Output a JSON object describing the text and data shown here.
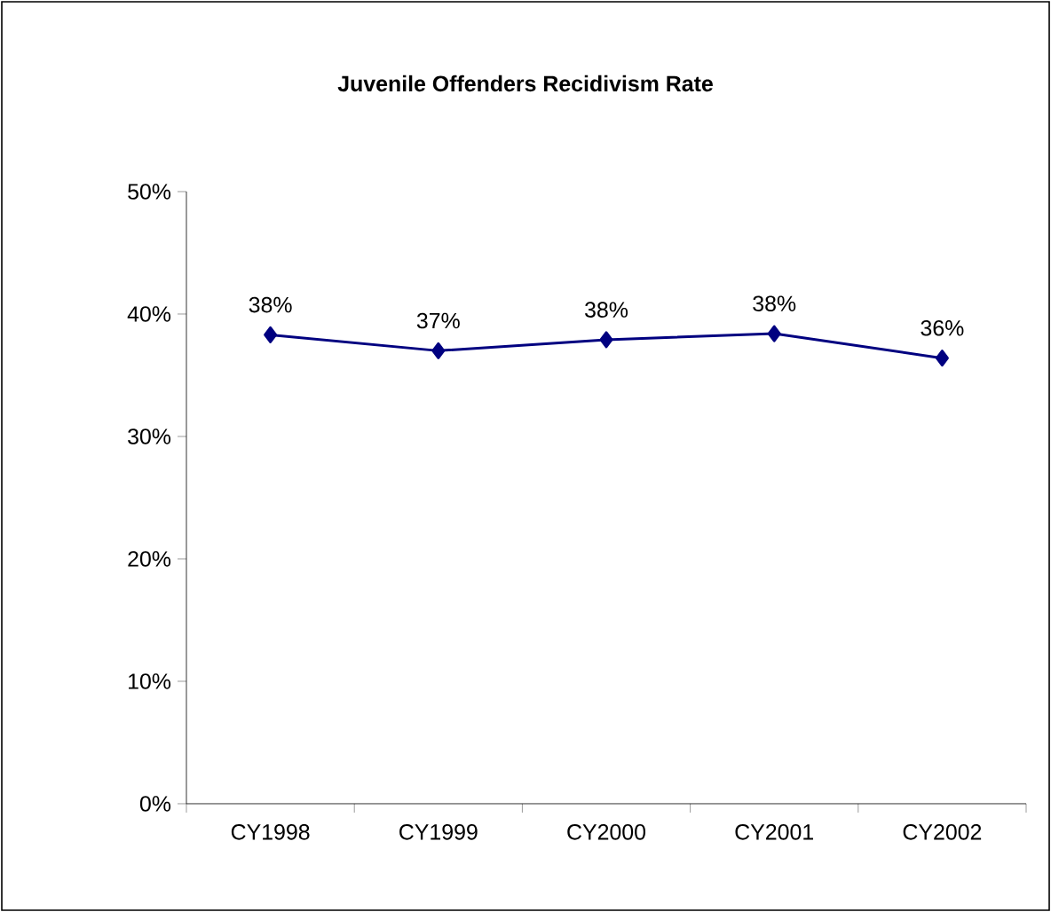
{
  "chart_data": {
    "type": "line",
    "title": "Juvenile Offenders Recidivism Rate",
    "categories": [
      "CY1998",
      "CY1999",
      "CY2000",
      "CY2001",
      "CY2002"
    ],
    "series": [
      {
        "color": "#000080",
        "values": [
          38.3,
          37.0,
          37.9,
          38.4,
          36.4
        ],
        "value_labels": [
          "38%",
          "37%",
          "38%",
          "38%",
          "36%"
        ]
      }
    ],
    "ylim": [
      0,
      50
    ],
    "yticks": [
      {
        "value": 0,
        "label": "0%"
      },
      {
        "value": 10,
        "label": "10%"
      },
      {
        "value": 20,
        "label": "20%"
      },
      {
        "value": 30,
        "label": "30%"
      },
      {
        "value": 40,
        "label": "40%"
      },
      {
        "value": 50,
        "label": "50%"
      }
    ],
    "marker": "diamond",
    "line_style": "solid",
    "grid": false
  }
}
